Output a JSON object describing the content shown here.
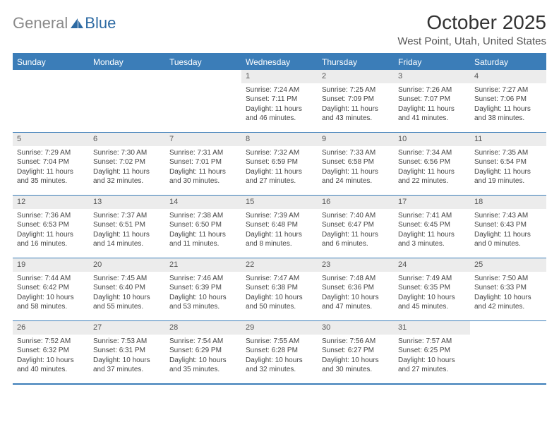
{
  "logo": {
    "text_gray": "General",
    "text_blue": "Blue"
  },
  "header": {
    "month_title": "October 2025",
    "location": "West Point, Utah, United States"
  },
  "calendar": {
    "header_bg": "#3b7db8",
    "header_fg": "#ffffff",
    "daynum_bg": "#ececec",
    "border_color": "#3b7db8",
    "weekdays": [
      "Sunday",
      "Monday",
      "Tuesday",
      "Wednesday",
      "Thursday",
      "Friday",
      "Saturday"
    ],
    "weeks": [
      [
        {
          "n": "",
          "sunrise": "",
          "sunset": "",
          "daylight": ""
        },
        {
          "n": "",
          "sunrise": "",
          "sunset": "",
          "daylight": ""
        },
        {
          "n": "",
          "sunrise": "",
          "sunset": "",
          "daylight": ""
        },
        {
          "n": "1",
          "sunrise": "Sunrise: 7:24 AM",
          "sunset": "Sunset: 7:11 PM",
          "daylight": "Daylight: 11 hours and 46 minutes."
        },
        {
          "n": "2",
          "sunrise": "Sunrise: 7:25 AM",
          "sunset": "Sunset: 7:09 PM",
          "daylight": "Daylight: 11 hours and 43 minutes."
        },
        {
          "n": "3",
          "sunrise": "Sunrise: 7:26 AM",
          "sunset": "Sunset: 7:07 PM",
          "daylight": "Daylight: 11 hours and 41 minutes."
        },
        {
          "n": "4",
          "sunrise": "Sunrise: 7:27 AM",
          "sunset": "Sunset: 7:06 PM",
          "daylight": "Daylight: 11 hours and 38 minutes."
        }
      ],
      [
        {
          "n": "5",
          "sunrise": "Sunrise: 7:29 AM",
          "sunset": "Sunset: 7:04 PM",
          "daylight": "Daylight: 11 hours and 35 minutes."
        },
        {
          "n": "6",
          "sunrise": "Sunrise: 7:30 AM",
          "sunset": "Sunset: 7:02 PM",
          "daylight": "Daylight: 11 hours and 32 minutes."
        },
        {
          "n": "7",
          "sunrise": "Sunrise: 7:31 AM",
          "sunset": "Sunset: 7:01 PM",
          "daylight": "Daylight: 11 hours and 30 minutes."
        },
        {
          "n": "8",
          "sunrise": "Sunrise: 7:32 AM",
          "sunset": "Sunset: 6:59 PM",
          "daylight": "Daylight: 11 hours and 27 minutes."
        },
        {
          "n": "9",
          "sunrise": "Sunrise: 7:33 AM",
          "sunset": "Sunset: 6:58 PM",
          "daylight": "Daylight: 11 hours and 24 minutes."
        },
        {
          "n": "10",
          "sunrise": "Sunrise: 7:34 AM",
          "sunset": "Sunset: 6:56 PM",
          "daylight": "Daylight: 11 hours and 22 minutes."
        },
        {
          "n": "11",
          "sunrise": "Sunrise: 7:35 AM",
          "sunset": "Sunset: 6:54 PM",
          "daylight": "Daylight: 11 hours and 19 minutes."
        }
      ],
      [
        {
          "n": "12",
          "sunrise": "Sunrise: 7:36 AM",
          "sunset": "Sunset: 6:53 PM",
          "daylight": "Daylight: 11 hours and 16 minutes."
        },
        {
          "n": "13",
          "sunrise": "Sunrise: 7:37 AM",
          "sunset": "Sunset: 6:51 PM",
          "daylight": "Daylight: 11 hours and 14 minutes."
        },
        {
          "n": "14",
          "sunrise": "Sunrise: 7:38 AM",
          "sunset": "Sunset: 6:50 PM",
          "daylight": "Daylight: 11 hours and 11 minutes."
        },
        {
          "n": "15",
          "sunrise": "Sunrise: 7:39 AM",
          "sunset": "Sunset: 6:48 PM",
          "daylight": "Daylight: 11 hours and 8 minutes."
        },
        {
          "n": "16",
          "sunrise": "Sunrise: 7:40 AM",
          "sunset": "Sunset: 6:47 PM",
          "daylight": "Daylight: 11 hours and 6 minutes."
        },
        {
          "n": "17",
          "sunrise": "Sunrise: 7:41 AM",
          "sunset": "Sunset: 6:45 PM",
          "daylight": "Daylight: 11 hours and 3 minutes."
        },
        {
          "n": "18",
          "sunrise": "Sunrise: 7:43 AM",
          "sunset": "Sunset: 6:43 PM",
          "daylight": "Daylight: 11 hours and 0 minutes."
        }
      ],
      [
        {
          "n": "19",
          "sunrise": "Sunrise: 7:44 AM",
          "sunset": "Sunset: 6:42 PM",
          "daylight": "Daylight: 10 hours and 58 minutes."
        },
        {
          "n": "20",
          "sunrise": "Sunrise: 7:45 AM",
          "sunset": "Sunset: 6:40 PM",
          "daylight": "Daylight: 10 hours and 55 minutes."
        },
        {
          "n": "21",
          "sunrise": "Sunrise: 7:46 AM",
          "sunset": "Sunset: 6:39 PM",
          "daylight": "Daylight: 10 hours and 53 minutes."
        },
        {
          "n": "22",
          "sunrise": "Sunrise: 7:47 AM",
          "sunset": "Sunset: 6:38 PM",
          "daylight": "Daylight: 10 hours and 50 minutes."
        },
        {
          "n": "23",
          "sunrise": "Sunrise: 7:48 AM",
          "sunset": "Sunset: 6:36 PM",
          "daylight": "Daylight: 10 hours and 47 minutes."
        },
        {
          "n": "24",
          "sunrise": "Sunrise: 7:49 AM",
          "sunset": "Sunset: 6:35 PM",
          "daylight": "Daylight: 10 hours and 45 minutes."
        },
        {
          "n": "25",
          "sunrise": "Sunrise: 7:50 AM",
          "sunset": "Sunset: 6:33 PM",
          "daylight": "Daylight: 10 hours and 42 minutes."
        }
      ],
      [
        {
          "n": "26",
          "sunrise": "Sunrise: 7:52 AM",
          "sunset": "Sunset: 6:32 PM",
          "daylight": "Daylight: 10 hours and 40 minutes."
        },
        {
          "n": "27",
          "sunrise": "Sunrise: 7:53 AM",
          "sunset": "Sunset: 6:31 PM",
          "daylight": "Daylight: 10 hours and 37 minutes."
        },
        {
          "n": "28",
          "sunrise": "Sunrise: 7:54 AM",
          "sunset": "Sunset: 6:29 PM",
          "daylight": "Daylight: 10 hours and 35 minutes."
        },
        {
          "n": "29",
          "sunrise": "Sunrise: 7:55 AM",
          "sunset": "Sunset: 6:28 PM",
          "daylight": "Daylight: 10 hours and 32 minutes."
        },
        {
          "n": "30",
          "sunrise": "Sunrise: 7:56 AM",
          "sunset": "Sunset: 6:27 PM",
          "daylight": "Daylight: 10 hours and 30 minutes."
        },
        {
          "n": "31",
          "sunrise": "Sunrise: 7:57 AM",
          "sunset": "Sunset: 6:25 PM",
          "daylight": "Daylight: 10 hours and 27 minutes."
        },
        {
          "n": "",
          "sunrise": "",
          "sunset": "",
          "daylight": ""
        }
      ]
    ]
  }
}
